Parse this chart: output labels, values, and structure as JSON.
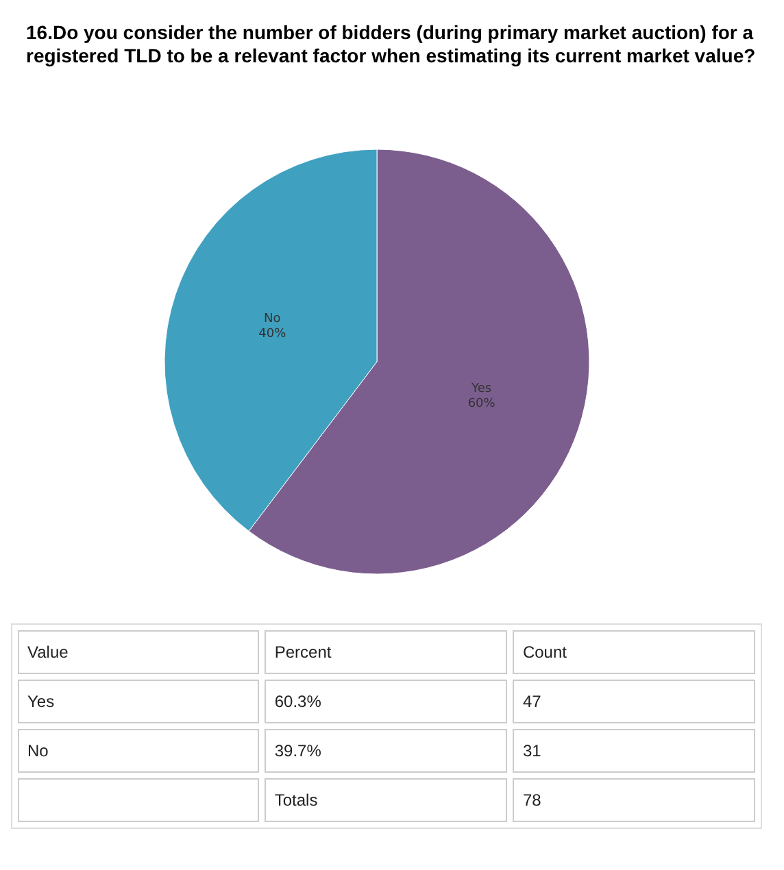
{
  "chart_data": {
    "type": "pie",
    "title": "16.Do you consider the number of bidders (during primary market auction) for a registered TLD to be a relevant factor when estimating its current market value?",
    "categories": [
      "Yes",
      "No"
    ],
    "values": [
      60.3,
      39.7
    ],
    "colors": [
      "#7b5e8e",
      "#40a0c0"
    ],
    "value_labels": [
      "60%",
      "40%"
    ],
    "annotations": [
      "Value",
      "Percent",
      "Count",
      "60.3%",
      "47",
      "39.7%",
      "31",
      "Totals",
      "78"
    ]
  }
}
